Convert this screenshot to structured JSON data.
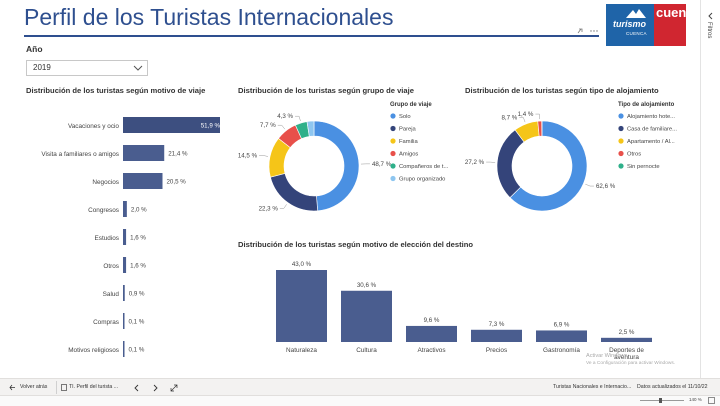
{
  "header": {
    "title": "Perfil de los Turistas Internacionales",
    "logo_text": "turismo",
    "logo_subtext": "CUENCA",
    "logo_red_text": "cuenca"
  },
  "filter": {
    "label": "Año",
    "value": "2019"
  },
  "side_panel": {
    "label": "Filtros"
  },
  "watermark": {
    "line1": "Activar Windows",
    "line2": "Ve a Configuración para activar Windows."
  },
  "footer": {
    "back": "Volver atrás",
    "page_tab": "TI. Perfil del turista ...",
    "report_name": "Turistas Nacionales e Internacio...",
    "updated": "Datos actualizados el 11/10/22",
    "zoom": "140 %"
  },
  "colors": {
    "accent": "#2e4f8f",
    "bar": "#4a5d8f",
    "bar_highlight": "#3d4f80"
  },
  "chart_data": [
    {
      "type": "bar",
      "orientation": "horizontal",
      "title": "Distribución de los turistas según motivo de viaje",
      "categories": [
        "Vacaciones y ocio",
        "Visita a familiares o amigos",
        "Negocios",
        "Congresos",
        "Estudios",
        "Otros",
        "Salud",
        "Compras",
        "Motivos religiosos"
      ],
      "values": [
        51.9,
        21.4,
        20.5,
        2.0,
        1.6,
        1.6,
        0.9,
        0.1,
        0.1
      ],
      "labels": [
        "51,9 %",
        "21,4 %",
        "20,5 %",
        "2,0 %",
        "1,6 %",
        "1,6 %",
        "0,9 %",
        "0,1 %",
        "0,1 %"
      ]
    },
    {
      "type": "pie",
      "variant": "donut",
      "title": "Distribución de los turistas según grupo de viaje",
      "legend_title": "Grupo de viaje",
      "categories": [
        "Solo",
        "Pareja",
        "Familia",
        "Amigos",
        "Compañeros de t...",
        "Grupo organizado"
      ],
      "values": [
        48.7,
        22.3,
        14.5,
        7.7,
        4.3,
        2.5
      ],
      "labels": [
        "48,7 %",
        "22,3 %",
        "14,5 %",
        "7,7 %",
        "4,3 %",
        ""
      ],
      "colors": [
        "#4a90e2",
        "#34447a",
        "#f5c518",
        "#e8504a",
        "#2fb08a",
        "#8ec6f0"
      ]
    },
    {
      "type": "pie",
      "variant": "donut",
      "title": "Distribución de los turistas según tipo de alojamiento",
      "legend_title": "Tipo de alojamiento",
      "categories": [
        "Alojamiento hote...",
        "Casa de familiare...",
        "Apartamento / Al...",
        "Otros",
        "Sin pernocte"
      ],
      "values": [
        62.6,
        27.2,
        8.7,
        1.4,
        0.1
      ],
      "labels": [
        "62,6 %",
        "27,2 %",
        "8,7 %",
        "1,4 %",
        ""
      ],
      "colors": [
        "#4a90e2",
        "#34447a",
        "#f5c518",
        "#e8504a",
        "#2fb08a"
      ]
    },
    {
      "type": "bar",
      "orientation": "vertical",
      "title": "Distribución de los turistas según motivo de elección del destino",
      "categories": [
        "Naturaleza",
        "Cultura",
        "Atractivos",
        "Precios",
        "Gastronomía",
        "Deportes de aventura"
      ],
      "values": [
        43.0,
        30.6,
        9.6,
        7.3,
        6.9,
        2.5
      ],
      "labels": [
        "43,0 %",
        "30,6 %",
        "9,6 %",
        "7,3 %",
        "6,9 %",
        "2,5 %"
      ]
    }
  ]
}
